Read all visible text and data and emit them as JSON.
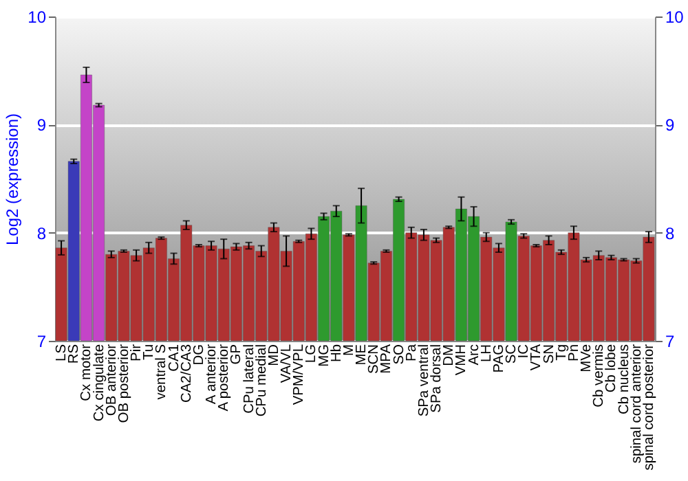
{
  "chart_data": {
    "type": "bar",
    "ylabel": "Log2 (expression)",
    "categories": [
      "LS",
      "RS",
      "Cx motor",
      "Cx cingulate",
      "OB anterior",
      "OB posterior",
      "Pir",
      "Tu",
      "ventral S",
      "CA1",
      "CA2/CA3",
      "DG",
      "A anterior",
      "A posterior",
      "GP",
      "CPu lateral",
      "CPu medial",
      "MD",
      "VA/VL",
      "VPM/VPL",
      "LG",
      "MG",
      "Hb",
      "M",
      "ME",
      "SCN",
      "MPA",
      "SO",
      "Pa",
      "SPa ventral",
      "SPa dorsal",
      "DM",
      "VMH",
      "Arc",
      "LH",
      "PAG",
      "SC",
      "IC",
      "VTA",
      "SN",
      "Tg",
      "Pn",
      "MVe",
      "Cb vermis",
      "Cb lobe",
      "Cb nucleus",
      "spinal cord anterior",
      "spinal cord posterior"
    ],
    "values": [
      7.86,
      8.66,
      9.46,
      9.18,
      7.8,
      7.83,
      7.79,
      7.86,
      7.95,
      7.76,
      8.07,
      7.88,
      7.88,
      7.85,
      7.87,
      7.88,
      7.83,
      8.05,
      7.83,
      7.92,
      7.99,
      8.15,
      8.2,
      7.98,
      8.25,
      7.72,
      7.83,
      8.31,
      8.0,
      7.98,
      7.93,
      8.05,
      8.22,
      8.15,
      7.96,
      7.86,
      8.1,
      7.97,
      7.88,
      7.93,
      7.82,
      8.0,
      7.75,
      7.79,
      7.77,
      7.75,
      7.74,
      7.96
    ],
    "errors": [
      0.065,
      0.02,
      0.07,
      0.015,
      0.03,
      0.01,
      0.05,
      0.05,
      0.01,
      0.05,
      0.04,
      0.01,
      0.04,
      0.09,
      0.03,
      0.03,
      0.05,
      0.04,
      0.14,
      0.01,
      0.05,
      0.03,
      0.05,
      0.01,
      0.16,
      0.01,
      0.01,
      0.02,
      0.05,
      0.05,
      0.02,
      0.01,
      0.11,
      0.09,
      0.04,
      0.04,
      0.02,
      0.02,
      0.01,
      0.04,
      0.02,
      0.06,
      0.02,
      0.04,
      0.02,
      0.01,
      0.02,
      0.05
    ],
    "colors": [
      "#b03232",
      "#3a3ab8",
      "#c444c8",
      "#c444c8",
      "#b03232",
      "#b03232",
      "#b03232",
      "#b03232",
      "#b03232",
      "#b03232",
      "#b03232",
      "#b03232",
      "#b03232",
      "#b03232",
      "#b03232",
      "#b03232",
      "#b03232",
      "#b03232",
      "#b03232",
      "#b03232",
      "#b03232",
      "#2e9a2e",
      "#2e9a2e",
      "#b03232",
      "#2e9a2e",
      "#b03232",
      "#b03232",
      "#2e9a2e",
      "#b03232",
      "#b03232",
      "#b03232",
      "#b03232",
      "#2e9a2e",
      "#2e9a2e",
      "#b03232",
      "#b03232",
      "#2e9a2e",
      "#b03232",
      "#b03232",
      "#b03232",
      "#b03232",
      "#b03232",
      "#b03232",
      "#b03232",
      "#b03232",
      "#b03232",
      "#b03232",
      "#b03232"
    ],
    "ylim": [
      7,
      10
    ],
    "yticks": [
      7,
      8,
      9,
      10
    ],
    "y2lim": [
      7,
      10
    ],
    "y2ticks": [
      7,
      8,
      9,
      10
    ],
    "grid": "y"
  }
}
